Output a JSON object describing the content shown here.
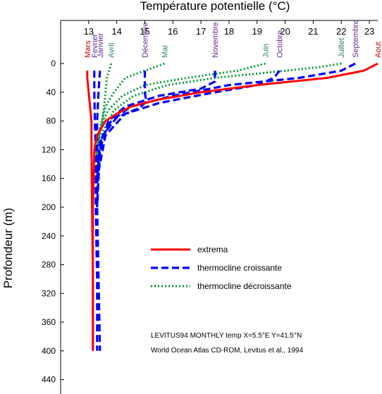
{
  "chart_data": {
    "type": "line",
    "title": "",
    "xlabel": "Température potentielle (°C)",
    "ylabel": "Profondeur (m)",
    "xlim": [
      12.0,
      23.3
    ],
    "ylim": [
      -60,
      460
    ],
    "x_ticks": [
      13,
      14,
      15,
      16,
      17,
      18,
      19,
      20,
      21,
      22,
      23
    ],
    "y_ticks": [
      0,
      40,
      80,
      120,
      160,
      200,
      240,
      280,
      320,
      360,
      400,
      440
    ],
    "grid": false,
    "legend_position": "center-right",
    "legend": [
      {
        "label": "extrema",
        "color": "#ff0000",
        "style": "solid"
      },
      {
        "label": "thermocline croissante",
        "color": "#0000ff",
        "style": "dashed"
      },
      {
        "label": "thermocline décroissante",
        "color": "#009933",
        "style": "dotted"
      }
    ],
    "series": [
      {
        "name": "Mars",
        "group": "extrema",
        "color": "#ff0000",
        "style": "solid",
        "label_color": "#cc0000",
        "x": [
          12.95,
          12.95,
          13.0,
          13.05,
          13.1,
          13.1,
          13.12,
          13.15,
          13.15
        ],
        "y": [
          10,
          20,
          40,
          60,
          80,
          120,
          200,
          300,
          400
        ]
      },
      {
        "name": "Aout",
        "group": "extrema",
        "color": "#ff0000",
        "style": "solid",
        "label_color": "#cc0000",
        "x": [
          23.3,
          22.8,
          21.5,
          19.0,
          17.0,
          15.5,
          14.5,
          14.0,
          13.6,
          13.3,
          13.2,
          13.15,
          13.15,
          13.15
        ],
        "y": [
          0,
          10,
          20,
          30,
          40,
          50,
          60,
          70,
          80,
          100,
          120,
          200,
          300,
          400
        ]
      },
      {
        "name": "Fevrier",
        "group": "croissante",
        "color": "#0000ff",
        "style": "dashed",
        "label_color": "#5b2d90",
        "x": [
          13.2,
          13.2,
          13.22,
          13.25,
          13.25,
          13.3,
          13.3
        ],
        "y": [
          10,
          40,
          80,
          120,
          200,
          300,
          400
        ]
      },
      {
        "name": "Janvier",
        "group": "croissante",
        "color": "#0000ff",
        "style": "dashed",
        "label_color": "#5b2d90",
        "x": [
          13.4,
          13.35,
          13.3,
          13.3,
          13.3,
          13.35,
          13.4
        ],
        "y": [
          10,
          40,
          80,
          120,
          200,
          300,
          400
        ]
      },
      {
        "name": "Décembre",
        "group": "croissante",
        "color": "#0000ff",
        "style": "dashed",
        "label_color": "#5b2d90",
        "x": [
          15.0,
          15.0,
          15.05,
          14.8,
          14.0,
          13.5,
          13.35,
          13.3
        ],
        "y": [
          10,
          40,
          53,
          62,
          75,
          100,
          140,
          200
        ]
      },
      {
        "name": "Novembre",
        "group": "croissante",
        "color": "#0000ff",
        "style": "dashed",
        "label_color": "#5b2d90",
        "x": [
          17.5,
          17.5,
          17.0,
          15.5,
          14.3,
          13.7,
          13.4,
          13.3
        ],
        "y": [
          10,
          25,
          35,
          45,
          60,
          80,
          120,
          200
        ]
      },
      {
        "name": "Octobre",
        "group": "croissante",
        "color": "#0000ff",
        "style": "dashed",
        "label_color": "#5b2d90",
        "x": [
          19.8,
          19.6,
          19.0,
          17.5,
          15.5,
          14.3,
          13.6,
          13.35
        ],
        "y": [
          10,
          20,
          30,
          40,
          55,
          70,
          100,
          150
        ]
      },
      {
        "name": "Septembre",
        "group": "croissante",
        "color": "#0000ff",
        "style": "dashed",
        "label_color": "#5b2d90",
        "x": [
          22.5,
          22.0,
          20.5,
          18.0,
          16.0,
          14.5,
          13.8,
          13.4,
          13.3
        ],
        "y": [
          0,
          10,
          20,
          30,
          45,
          60,
          80,
          110,
          160
        ]
      },
      {
        "name": "Avril",
        "group": "décroissante",
        "color": "#009933",
        "style": "dotted",
        "label_color": "#2e7d6b",
        "x": [
          13.8,
          13.65,
          13.55,
          13.45,
          13.3,
          13.25
        ],
        "y": [
          0,
          20,
          60,
          90,
          120,
          160
        ]
      },
      {
        "name": "Mai",
        "group": "décroissante",
        "color": "#009933",
        "style": "dotted",
        "label_color": "#2e7d6b",
        "x": [
          15.7,
          15.0,
          14.3,
          13.9,
          13.6,
          13.4,
          13.25
        ],
        "y": [
          0,
          10,
          20,
          40,
          60,
          90,
          130
        ]
      },
      {
        "name": "Juin",
        "group": "décroissante",
        "color": "#009933",
        "style": "dotted",
        "label_color": "#2e7d6b",
        "x": [
          19.3,
          18.3,
          16.5,
          15.0,
          14.2,
          13.7,
          13.4,
          13.3
        ],
        "y": [
          0,
          10,
          20,
          30,
          45,
          65,
          90,
          130
        ]
      },
      {
        "name": "Juillet",
        "group": "décroissante",
        "color": "#009933",
        "style": "dotted",
        "label_color": "#2e7d6b",
        "x": [
          22.0,
          21.2,
          19.5,
          17.5,
          15.8,
          14.6,
          13.9,
          13.5,
          13.3
        ],
        "y": [
          0,
          5,
          12,
          20,
          30,
          45,
          65,
          95,
          140
        ]
      }
    ],
    "annotations": [
      "LEVITUS94 MONTHLY temp X=5.5°E Y=41.5°N",
      "World Ocean Atlas CD-ROM, Levitus et al., 1994"
    ]
  }
}
